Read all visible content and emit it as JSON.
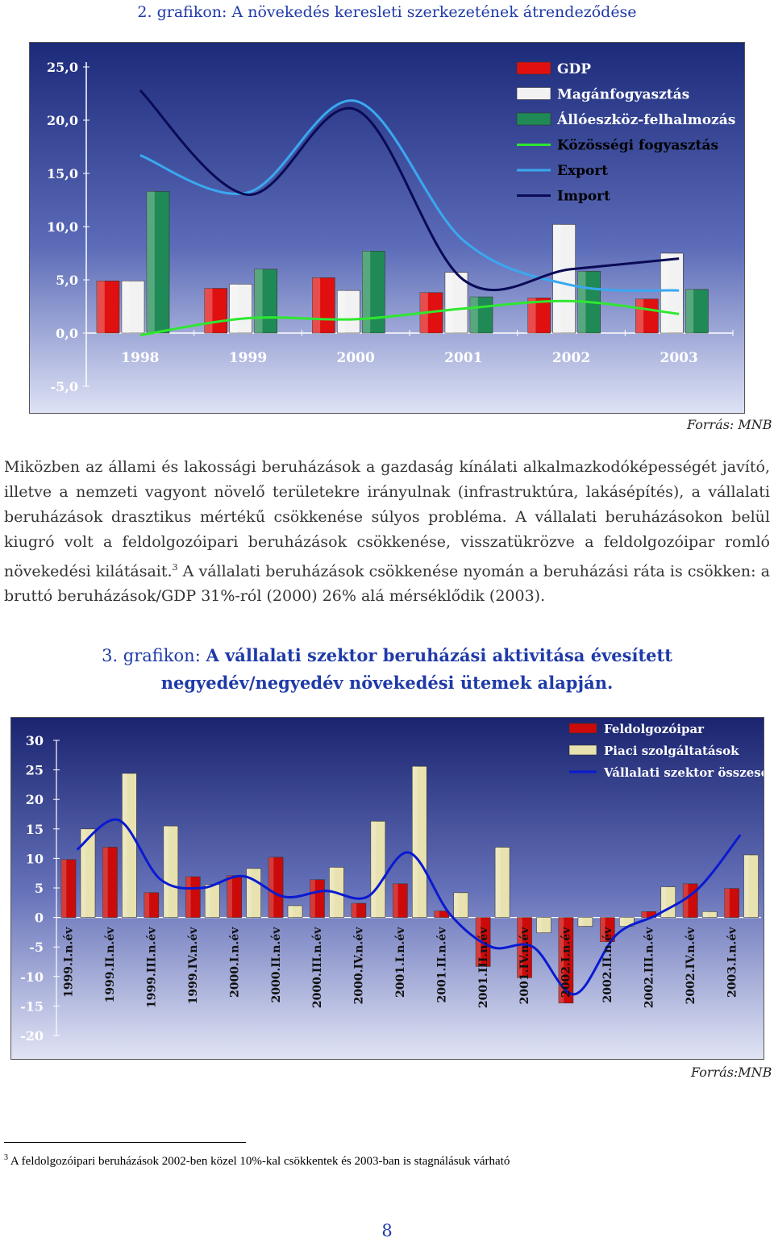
{
  "figure1": {
    "caption_prefix": "2. grafikon:",
    "caption_title": "A növekedés keresleti szerkezetének átrendeződése",
    "source": "Forrás: MNB",
    "chart_data": {
      "type": "bar",
      "categories": [
        "1998",
        "1999",
        "2000",
        "2001",
        "2002",
        "2003"
      ],
      "ylim": [
        -5,
        25
      ],
      "yticks": [
        "25,0",
        "20,0",
        "15,0",
        "10,0",
        "5,0",
        "0,0",
        "-5,0"
      ],
      "bar_series": [
        {
          "name": "GDP",
          "color": "#e01010",
          "values": [
            4.9,
            4.2,
            5.2,
            3.8,
            3.3,
            3.2
          ]
        },
        {
          "name": "Magánfogyasztás",
          "color": "#f2f2f2",
          "values": [
            4.9,
            4.6,
            4.0,
            5.7,
            10.2,
            7.5
          ]
        },
        {
          "name": "Állóeszköz-felhalmozás",
          "color": "#1f8a55",
          "values": [
            13.3,
            6.0,
            7.7,
            3.4,
            5.8,
            4.1
          ]
        }
      ],
      "line_series": [
        {
          "name": "Közösségi fogyasztás",
          "color": "#2ee830",
          "values": [
            -0.2,
            1.4,
            1.3,
            2.3,
            3.0,
            1.8
          ]
        },
        {
          "name": "Export",
          "color": "#3aa8f0",
          "values": [
            16.7,
            13.2,
            21.8,
            8.7,
            4.5,
            4.0
          ]
        },
        {
          "name": "Import",
          "color": "#0a0a55",
          "values": [
            22.8,
            13.0,
            21.0,
            5.0,
            6.0,
            7.0
          ]
        }
      ]
    }
  },
  "paragraph": {
    "text": "Miközben az állami és lakossági beruházások a gazdaság kínálati alkalmazkodóképességét javító, illetve a nemzeti vagyont növelő területekre irányulnak (infrastruktúra, lakásépítés), a vállalati beruházások drasztikus mértékű csökkenése súlyos probléma. A vállalati beruházásokon belül kiugró volt a feldolgozóipari beruházások csökkenése, visszatükrözve a feldolgozóipar romló növekedési kilátásait.",
    "sup": "3",
    "text_after": " A vállalati beruházások csökkenése nyomán a beruházási ráta is csökken: a bruttó beruházások/GDP 31%-ról (2000) 26% alá mérséklődik (2003)."
  },
  "figure2": {
    "caption_prefix": "3. grafikon:",
    "caption_title": "A vállalati szektor beruházási aktivitása évesített negyedév/negyedév növekedési ütemek alapján.",
    "source": "Forrás:MNB",
    "chart_data": {
      "type": "bar",
      "categories": [
        "1999.I.n.év",
        "1999.II.n.év",
        "1999.III.n.év",
        "1999.IV.n.év",
        "2000.I.n.év",
        "2000.II.n.év",
        "2000.III.n.év",
        "2000.IV.n.év",
        "2001.I.n.év",
        "2001.II.n.év",
        "2001.III.n.év",
        "2001.IV.n.év",
        "2002.I.n.év",
        "2002.II.n.év",
        "2002.III.n.év",
        "2002.IV.n.év",
        "2003.I.n.év"
      ],
      "ylim": [
        -20,
        30
      ],
      "yticks": [
        "30",
        "25",
        "20",
        "15",
        "10",
        "5",
        "0",
        "-5",
        "-10",
        "-15",
        "-20"
      ],
      "bar_series": [
        {
          "name": "Feldolgozóipar",
          "color": "#cc0a0a",
          "values": [
            9.8,
            11.9,
            4.2,
            6.9,
            7.1,
            10.2,
            6.4,
            2.4,
            5.7,
            1.1,
            -8.3,
            -10.2,
            -14.5,
            -4.1,
            1.0,
            5.7,
            4.9
          ]
        },
        {
          "name": "Piaci szolgáltatások",
          "color": "#e8e2b0",
          "values": [
            15.0,
            24.4,
            15.5,
            5.6,
            8.3,
            2.0,
            8.5,
            16.3,
            25.6,
            4.2,
            11.9,
            -2.6,
            -1.5,
            -1.5,
            5.2,
            1.0,
            10.6
          ]
        }
      ],
      "line_series": [
        {
          "name": "Vállalati szektor összesen",
          "color": "#0a1ad0",
          "values": [
            11.5,
            16.5,
            6.5,
            5.0,
            7.0,
            3.5,
            4.5,
            3.5,
            11.0,
            0.5,
            -5.0,
            -5.0,
            -13.0,
            -3.0,
            0.5,
            5.0,
            14.0
          ]
        }
      ]
    }
  },
  "footnote": {
    "number": "3",
    "text": " A feldolgozóipari beruházások 2002-ben közel 10%-kal csökkentek és 2003-ban is stagnálásuk várható"
  },
  "page_number": "8"
}
